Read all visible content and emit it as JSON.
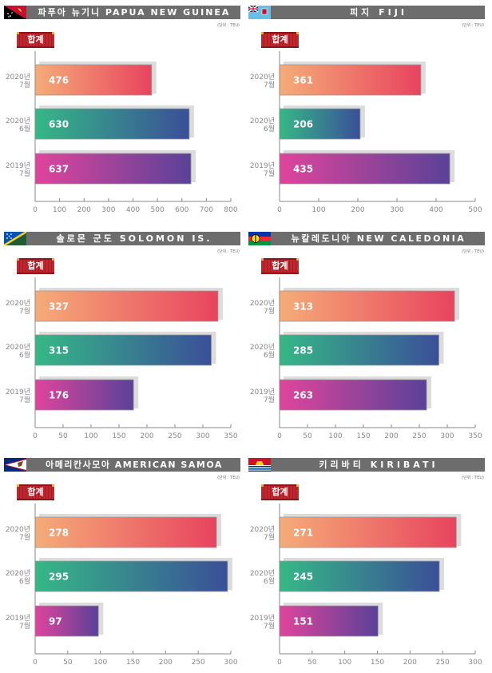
{
  "unit_label": "(단위 : TEU)",
  "badge_label": "합계",
  "gradients": {
    "2020-07": [
      "#f5ac78",
      "#e8445e"
    ],
    "2020-06": [
      "#35b886",
      "#3a4f98"
    ],
    "2019-07": [
      "#e0449c",
      "#5a4298"
    ]
  },
  "chart_data": [
    {
      "type": "bar",
      "title": "파푸아 뉴기니 PAPUA NEW GUINEA",
      "flag": "papua-new-guinea-flag",
      "categories": [
        {
          "line1": "2020년",
          "line2": "7월",
          "key": "2020-07"
        },
        {
          "line1": "2020년",
          "line2": "6월",
          "key": "2020-06"
        },
        {
          "line1": "2019년",
          "line2": "7월",
          "key": "2019-07"
        }
      ],
      "values": [
        476,
        630,
        637
      ],
      "value_labels": [
        "476",
        "630",
        "637"
      ],
      "xlim": [
        0,
        800
      ],
      "ticks": [
        0,
        100,
        200,
        300,
        400,
        500,
        600,
        700,
        800
      ],
      "tick_labels": [
        "0",
        "100",
        "200",
        "300",
        "400",
        "500",
        "600",
        "700",
        "800"
      ]
    },
    {
      "type": "bar",
      "title": "피지 FIJI",
      "flag": "fiji-flag",
      "categories": [
        {
          "line1": "2020년",
          "line2": "7월",
          "key": "2020-07"
        },
        {
          "line1": "2020년",
          "line2": "6월",
          "key": "2020-06"
        },
        {
          "line1": "2019년",
          "line2": "7월",
          "key": "2019-07"
        }
      ],
      "values": [
        361,
        206,
        435
      ],
      "value_labels": [
        "361",
        "206",
        "435"
      ],
      "xlim": [
        0,
        500
      ],
      "ticks": [
        0,
        100,
        200,
        300,
        400,
        500
      ],
      "tick_labels": [
        "0",
        "100",
        "200",
        "300",
        "400",
        "500"
      ]
    },
    {
      "type": "bar",
      "title": "솔로몬 군도 SOLOMON IS.",
      "flag": "solomon-islands-flag",
      "categories": [
        {
          "line1": "2020년",
          "line2": "7월",
          "key": "2020-07"
        },
        {
          "line1": "2020년",
          "line2": "6월",
          "key": "2020-06"
        },
        {
          "line1": "2019년",
          "line2": "7월",
          "key": "2019-07"
        }
      ],
      "values": [
        327,
        315,
        176
      ],
      "value_labels": [
        "327",
        "315",
        "176"
      ],
      "xlim": [
        0,
        350
      ],
      "ticks": [
        0,
        50,
        100,
        150,
        200,
        250,
        300,
        350
      ],
      "tick_labels": [
        "0",
        "50",
        "100",
        "150",
        "200",
        "250",
        "300",
        "350"
      ]
    },
    {
      "type": "bar",
      "title": "뉴칼레도니아 NEW CALEDONIA",
      "flag": "new-caledonia-flag",
      "categories": [
        {
          "line1": "2020년",
          "line2": "7월",
          "key": "2020-07"
        },
        {
          "line1": "2020년",
          "line2": "6월",
          "key": "2020-06"
        },
        {
          "line1": "2019년",
          "line2": "7월",
          "key": "2019-07"
        }
      ],
      "values": [
        313,
        285,
        263
      ],
      "value_labels": [
        "313",
        "285",
        "263"
      ],
      "xlim": [
        0,
        350
      ],
      "ticks": [
        0,
        50,
        100,
        150,
        200,
        250,
        300,
        350
      ],
      "tick_labels": [
        "0",
        "50",
        "100",
        "150",
        "200",
        "250",
        "300",
        "350"
      ]
    },
    {
      "type": "bar",
      "title": "아메리칸사모아 AMERICAN SAMOA",
      "flag": "american-samoa-flag",
      "categories": [
        {
          "line1": "2020년",
          "line2": "7월",
          "key": "2020-07"
        },
        {
          "line1": "2020년",
          "line2": "6월",
          "key": "2020-06"
        },
        {
          "line1": "2019년",
          "line2": "7월",
          "key": "2019-07"
        }
      ],
      "values": [
        278,
        295,
        97
      ],
      "value_labels": [
        "278",
        "295",
        "97"
      ],
      "xlim": [
        0,
        300
      ],
      "ticks": [
        0,
        50,
        100,
        150,
        200,
        250,
        300
      ],
      "tick_labels": [
        "0",
        "50",
        "100",
        "150",
        "200",
        "250",
        "300"
      ]
    },
    {
      "type": "bar",
      "title": "키리바티 KIRIBATI",
      "flag": "kiribati-flag",
      "categories": [
        {
          "line1": "2020년",
          "line2": "7월",
          "key": "2020-07"
        },
        {
          "line1": "2020년",
          "line2": "6월",
          "key": "2020-06"
        },
        {
          "line1": "2019년",
          "line2": "7월",
          "key": "2019-07"
        }
      ],
      "values": [
        271,
        245,
        151
      ],
      "value_labels": [
        "271",
        "245",
        "151"
      ],
      "xlim": [
        0,
        300
      ],
      "ticks": [
        0,
        50,
        100,
        150,
        200,
        250,
        300
      ],
      "tick_labels": [
        "0",
        "50",
        "100",
        "150",
        "200",
        "250",
        "300"
      ]
    }
  ]
}
